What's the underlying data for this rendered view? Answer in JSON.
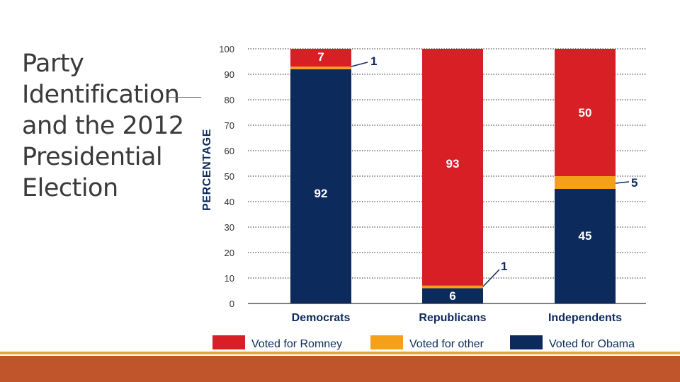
{
  "slide": {
    "title": "Party\nIdentification\nand the 2012\nPresidential\nElection"
  },
  "colors": {
    "romney": "#d91f26",
    "other": "#f6a01a",
    "obama": "#0d2a5c",
    "grid": "#333333",
    "accent_band": "#c0542a",
    "accent_line": "#e3a63c"
  },
  "chart_data": {
    "type": "bar",
    "stacked": true,
    "ylabel": "PERCENTAGE",
    "ylim": [
      0,
      100
    ],
    "yticks": [
      0,
      10,
      20,
      30,
      40,
      50,
      60,
      70,
      80,
      90,
      100
    ],
    "grid": true,
    "categories": [
      "Democrats",
      "Republicans",
      "Independents"
    ],
    "series": [
      {
        "name": "Voted for Obama",
        "values": [
          92,
          6,
          45
        ]
      },
      {
        "name": "Voted for other",
        "values": [
          1,
          1,
          5
        ]
      },
      {
        "name": "Voted for Romney",
        "values": [
          7,
          93,
          50
        ]
      }
    ],
    "legend": [
      "Voted for Romney",
      "Voted for other",
      "Voted for Obama"
    ],
    "legend_position": "bottom"
  }
}
